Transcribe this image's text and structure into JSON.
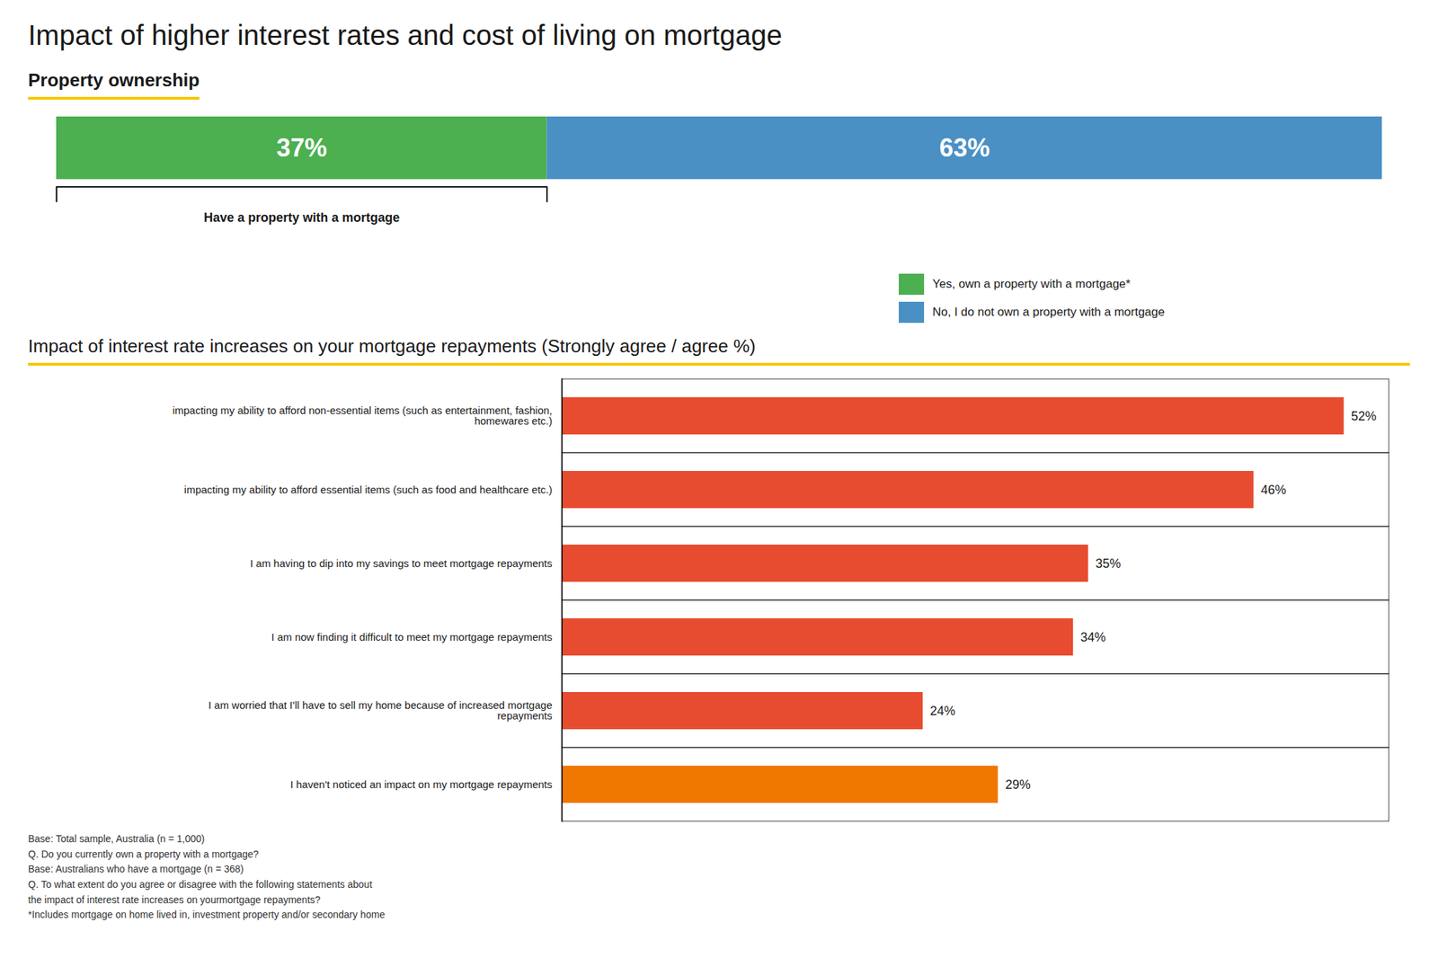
{
  "chart_data": [
    {
      "type": "bar",
      "orientation": "horizontal",
      "stacked": true,
      "title": "Impact of higher interest rates and cost of living on mortgage",
      "subtitle": "Property ownership",
      "categories": [
        null
      ],
      "series": [
        {
          "name": "Yes, own a property with a mortgage*",
          "color": "#4CAF50",
          "values": [
            37
          ],
          "value_labels": [
            "37%"
          ]
        },
        {
          "name": "No, I do not own a property with a mortgage",
          "color": "#4A90C4",
          "values": [
            63
          ],
          "value_labels": [
            "63%"
          ]
        }
      ],
      "xlim": [
        0,
        100
      ],
      "tick_labels": false,
      "grid": false,
      "legend": "right",
      "data_labels": true,
      "annotations": [
        "Have a property with a mortgage"
      ]
    },
    {
      "type": "bar",
      "orientation": "horizontal",
      "title": "Impact of interest rate increases on your mortgage repayments (Strongly agree / agree %)",
      "categories": [
        "impacting my ability to afford non-essential items (such as entertainment, fashion,\nhomewares etc.)",
        "impacting my ability to afford essential items (such as food and healthcare etc.)",
        "I am having to dip into my savings to meet mortgage repayments",
        "I am now finding it difficult to meet my mortgage repayments",
        "I am worried that I'll have to sell my home because of increased mortgage\nrepayments",
        "I haven't noticed an impact on my mortgage repayments"
      ],
      "values": [
        52,
        46,
        35,
        34,
        24,
        29
      ],
      "value_labels": [
        "52%",
        "46%",
        "35%",
        "34%",
        "24%",
        "29%"
      ],
      "colors": [
        "#E84C30",
        "#E84C30",
        "#E84C30",
        "#E84C30",
        "#E84C30",
        "#F07800"
      ],
      "xlim": [
        0,
        55
      ],
      "tick_labels": "y",
      "grid": false,
      "data_labels": true,
      "annotations": [
        "Base: Total sample, Australia (n = 1,000)",
        "Q. Do you currently own a property with a mortgage?",
        "Base: Australians who have a mortgage (n = 368)",
        "Q. To what extent do you agree or disagree with the following statements about",
        "the impact of interest rate increases on yourmortgage repayments?",
        "*Includes mortgage on home lived in, investment property and/or secondary home"
      ]
    }
  ]
}
